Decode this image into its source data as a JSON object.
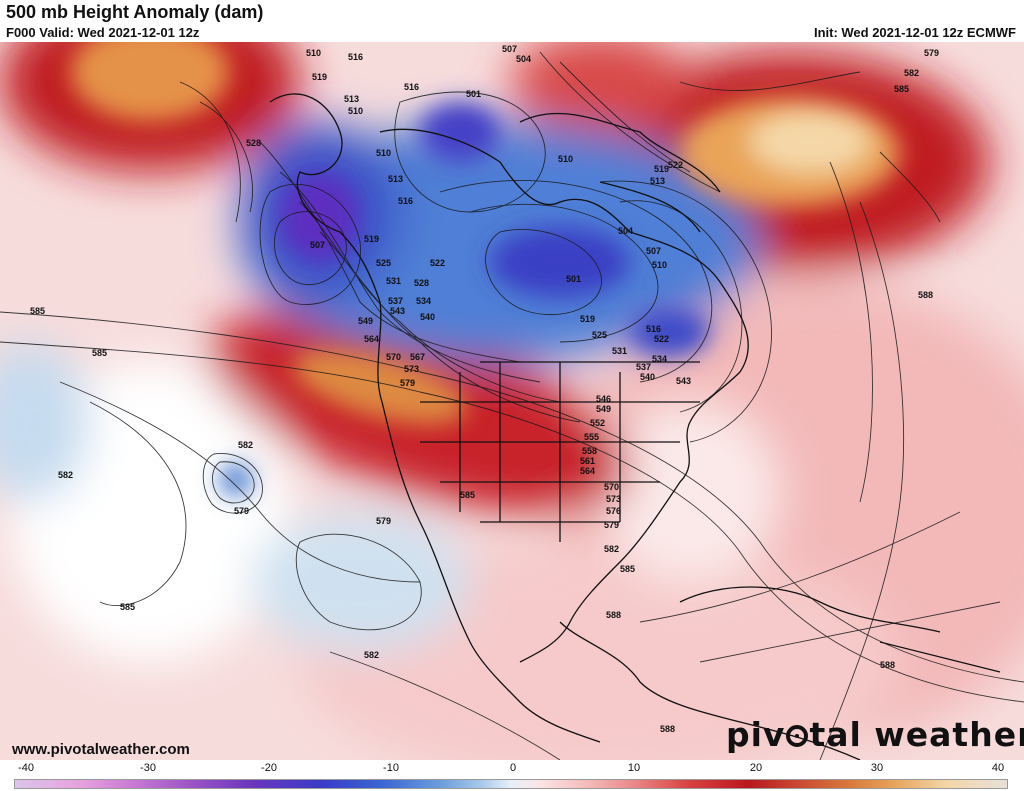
{
  "header": {
    "title": "500 mb Height Anomaly (dam)",
    "valid": "F000 Valid: Wed 2021-12-01 12z",
    "init": "Init: Wed 2021-12-01 12z ECMWF"
  },
  "footer": {
    "url": "www.pivotalweather.com",
    "brand_before": "piv",
    "brand_after": "tal weather"
  },
  "colorbar": {
    "ticks": [
      "-40",
      "-30",
      "-20",
      "-10",
      "0",
      "10",
      "20",
      "30",
      "40"
    ]
  },
  "contour_labels": [
    "579",
    "582",
    "585",
    "588",
    "510",
    "516",
    "519",
    "528",
    "513",
    "507",
    "504",
    "501",
    "522",
    "525",
    "531",
    "537",
    "534",
    "540",
    "543",
    "546",
    "549",
    "552",
    "555",
    "558",
    "561",
    "564",
    "570",
    "573",
    "576",
    "567"
  ],
  "colors": {
    "strong_negative": "#3b2fc8",
    "negative": "#5a86d6",
    "weak_negative": "#c9dff0",
    "neutral": "#ffffff",
    "weak_positive": "#f5c8c8",
    "positive": "#c8202a",
    "strong_positive": "#e89a48",
    "coastline": "#111111"
  }
}
